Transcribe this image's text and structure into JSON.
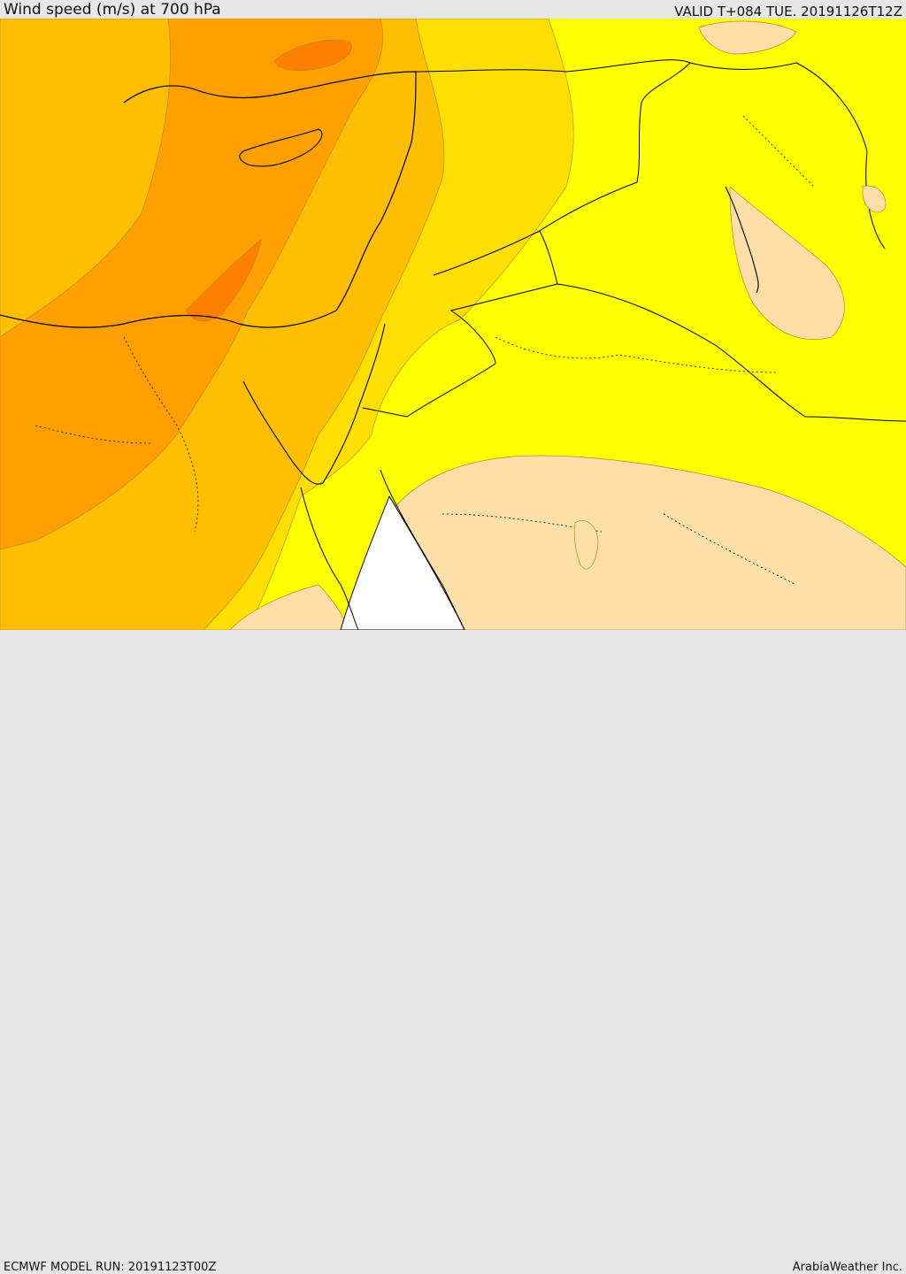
{
  "header": {
    "title": "Wind speed (m/s) at 700 hPa",
    "valid_time": "VALID T+084 TUE. 20191126T12Z"
  },
  "footer": {
    "model_run": "ECMWF MODEL RUN: 20191123T00Z",
    "credit": "ArabiaWeather Inc."
  },
  "colors": {
    "level_1": "#ffff00",
    "level_2": "#ffdf00",
    "level_3": "#ffbf00",
    "level_4": "#ff9f00",
    "level_5": "#ff8000",
    "low": "#ffdfa8",
    "no_data": "#ffffff",
    "coastline": "#000000"
  }
}
